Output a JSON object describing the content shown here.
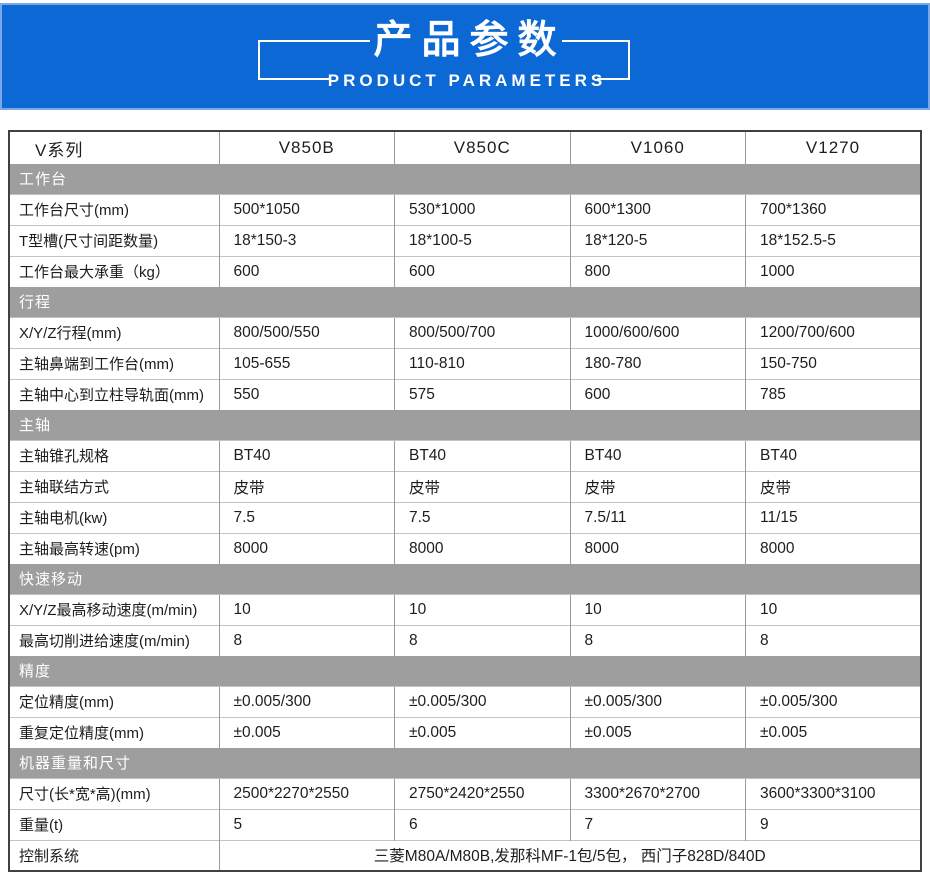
{
  "banner": {
    "title": "产品参数",
    "subtitle": "PRODUCT PARAMETERS",
    "bg_color": "#0b68d4",
    "border_color": "#7aa7e6"
  },
  "table": {
    "section_bg": "#9e9e9e",
    "header": [
      "V系列",
      "V850B",
      "V850C",
      "V1060",
      "V1270"
    ],
    "rows": [
      {
        "type": "section",
        "label": "工作台"
      },
      {
        "type": "data",
        "label": "工作台尺寸(mm)",
        "values": [
          "500*1050",
          "530*1000",
          "600*1300",
          "700*1360"
        ]
      },
      {
        "type": "data",
        "label": "T型槽(尺寸间距数量)",
        "values": [
          "18*150-3",
          "18*100-5",
          "18*120-5",
          "18*152.5-5"
        ]
      },
      {
        "type": "data",
        "label": "工作台最大承重（kg）",
        "values": [
          "600",
          "600",
          "800",
          "1000"
        ]
      },
      {
        "type": "section",
        "label": "行程"
      },
      {
        "type": "data",
        "label": "X/Y/Z行程(mm)",
        "values": [
          "800/500/550",
          "800/500/700",
          "1000/600/600",
          "1200/700/600"
        ]
      },
      {
        "type": "data",
        "label": "主轴鼻端到工作台(mm)",
        "values": [
          "105-655",
          "110-810",
          "180-780",
          "150-750"
        ]
      },
      {
        "type": "data",
        "label": "主轴中心到立柱导轨面(mm)",
        "values": [
          "550",
          "575",
          "600",
          "785"
        ]
      },
      {
        "type": "section",
        "label": "主轴"
      },
      {
        "type": "data",
        "label": "主轴锥孔规格",
        "values": [
          "BT40",
          "BT40",
          "BT40",
          "BT40"
        ]
      },
      {
        "type": "data",
        "label": "主轴联结方式",
        "values": [
          "皮带",
          "皮带",
          "皮带",
          "皮带"
        ]
      },
      {
        "type": "data",
        "label": "主轴电机(kw)",
        "values": [
          "7.5",
          "7.5",
          "7.5/11",
          "11/15"
        ]
      },
      {
        "type": "data",
        "label": "主轴最高转速(pm)",
        "values": [
          "8000",
          "8000",
          "8000",
          "8000"
        ]
      },
      {
        "type": "section",
        "label": "快速移动"
      },
      {
        "type": "data",
        "label": "X/Y/Z最高移动速度(m/min)",
        "values": [
          "10",
          "10",
          "10",
          "10"
        ]
      },
      {
        "type": "data",
        "label": "最高切削进给速度(m/min)",
        "values": [
          "8",
          "8",
          "8",
          "8"
        ]
      },
      {
        "type": "section",
        "label": "精度"
      },
      {
        "type": "data",
        "label": "定位精度(mm)",
        "values": [
          "±0.005/300",
          "±0.005/300",
          "±0.005/300",
          "±0.005/300"
        ]
      },
      {
        "type": "data",
        "label": "重复定位精度(mm)",
        "values": [
          "±0.005",
          "±0.005",
          "±0.005",
          "±0.005"
        ]
      },
      {
        "type": "section",
        "label": "机器重量和尺寸"
      },
      {
        "type": "data",
        "label": "尺寸(长*宽*高)(mm)",
        "values": [
          "2500*2270*2550",
          "2750*2420*2550",
          "3300*2670*2700",
          "3600*3300*3100"
        ]
      },
      {
        "type": "data",
        "label": "重量(t)",
        "values": [
          "5",
          "6",
          "7",
          "9"
        ]
      },
      {
        "type": "span",
        "label": "控制系统",
        "value": "三菱M80A/M80B,发那科MF-1包/5包， 西门子828D/840D"
      }
    ]
  }
}
